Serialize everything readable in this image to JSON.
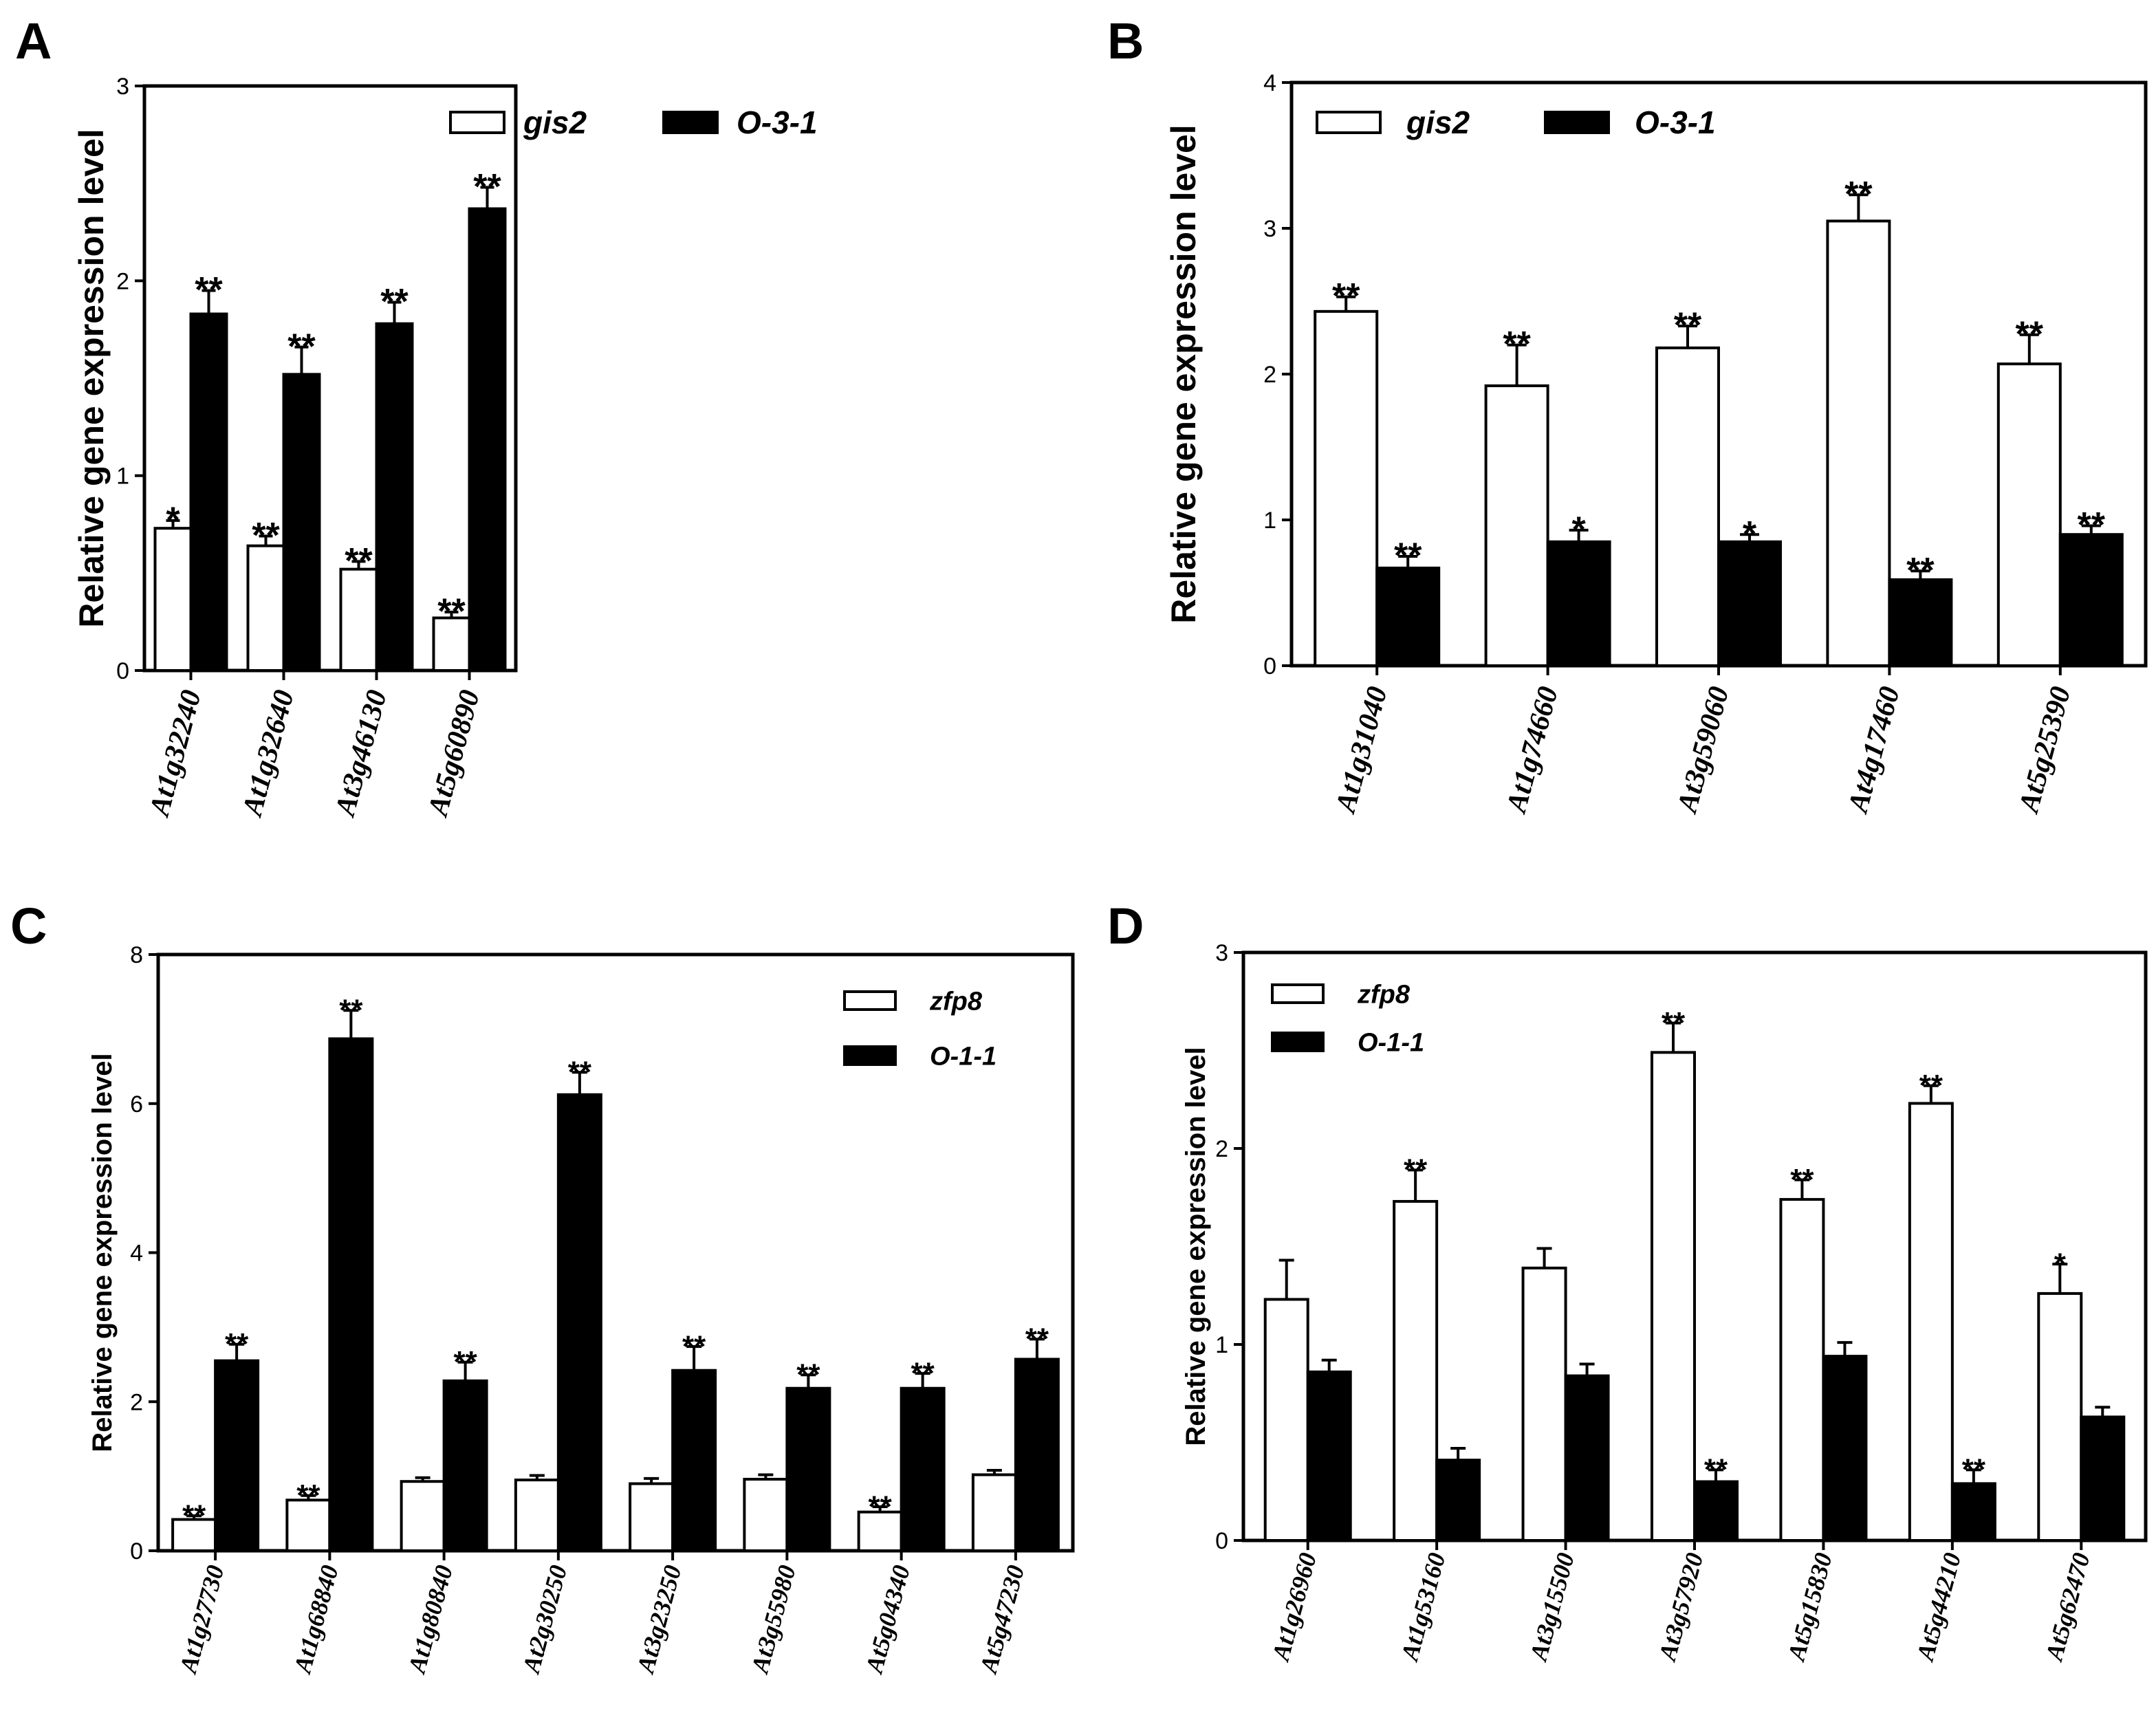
{
  "chart_data": [
    {
      "panel": "A",
      "type": "bar",
      "ylabel": "Relative gene expression level",
      "ylim": [
        0,
        3
      ],
      "yticks": [
        "0",
        "1",
        "2",
        "3"
      ],
      "legend": "top-center",
      "categories": [
        "At1g32240",
        "At1g32640",
        "At3g46130",
        "At5g60890"
      ],
      "series": [
        {
          "name": "gis2",
          "fill": "#ffffff",
          "values": [
            0.73,
            0.64,
            0.52,
            0.27
          ],
          "errors": [
            0.04,
            0.05,
            0.04,
            0.03
          ],
          "sig": [
            "*",
            "**",
            "**",
            "**"
          ]
        },
        {
          "name": "O-3-1",
          "fill": "#000000",
          "values": [
            1.83,
            1.52,
            1.78,
            2.37
          ],
          "errors": [
            0.12,
            0.14,
            0.11,
            0.11
          ],
          "sig": [
            "**",
            "**",
            "**",
            "**"
          ]
        }
      ]
    },
    {
      "panel": "B",
      "type": "bar",
      "ylabel": "Relative gene expression level",
      "ylim": [
        0,
        4
      ],
      "yticks": [
        "0",
        "1",
        "2",
        "3",
        "4"
      ],
      "legend": "top-left",
      "categories": [
        "At1g31040",
        "At1g74660",
        "At3g59060",
        "At4g17460",
        "At5g25390"
      ],
      "series": [
        {
          "name": "gis2",
          "fill": "#ffffff",
          "values": [
            2.43,
            1.92,
            2.18,
            3.05,
            2.07
          ],
          "errors": [
            0.1,
            0.28,
            0.15,
            0.18,
            0.2
          ],
          "sig": [
            "**",
            "**",
            "**",
            "**",
            "**"
          ]
        },
        {
          "name": "O-3-1",
          "fill": "#000000",
          "values": [
            0.67,
            0.85,
            0.85,
            0.59,
            0.9
          ],
          "errors": [
            0.08,
            0.08,
            0.05,
            0.06,
            0.06
          ],
          "sig": [
            "**",
            "*",
            "*",
            "**",
            "**"
          ]
        }
      ]
    },
    {
      "panel": "C",
      "type": "bar",
      "ylabel": "Relative gene expression level",
      "ylim": [
        0,
        8
      ],
      "yticks": [
        "0",
        "2",
        "4",
        "6",
        "8"
      ],
      "legend": "top-right",
      "categories": [
        "At1g27730",
        "At1g68840",
        "At1g80840",
        "At2g30250",
        "At3g23250",
        "At3g55980",
        "At5g04340",
        "At5g47230"
      ],
      "series": [
        {
          "name": "zfp8",
          "fill": "#ffffff",
          "values": [
            0.42,
            0.68,
            0.93,
            0.95,
            0.9,
            0.96,
            0.52,
            1.02
          ],
          "errors": [
            0.05,
            0.06,
            0.05,
            0.06,
            0.07,
            0.06,
            0.07,
            0.06
          ],
          "sig": [
            "**",
            "**",
            "",
            "",
            "",
            "",
            "**",
            ""
          ]
        },
        {
          "name": "O-1-1",
          "fill": "#000000",
          "values": [
            2.55,
            6.87,
            2.28,
            6.12,
            2.42,
            2.18,
            2.18,
            2.57
          ],
          "errors": [
            0.22,
            0.38,
            0.25,
            0.3,
            0.32,
            0.18,
            0.2,
            0.27
          ],
          "sig": [
            "**",
            "**",
            "**",
            "**",
            "**",
            "**",
            "**",
            "**"
          ]
        }
      ]
    },
    {
      "panel": "D",
      "type": "bar",
      "ylabel": "Relative gene expression level",
      "ylim": [
        0,
        3
      ],
      "yticks": [
        "0",
        "1",
        "2",
        "3"
      ],
      "legend": "top-left",
      "categories": [
        "At1g26960",
        "At1g53160",
        "At3g15500",
        "At3g57920",
        "At5g15830",
        "At5g44210",
        "At5g62470"
      ],
      "series": [
        {
          "name": "zfp8",
          "fill": "#ffffff",
          "values": [
            1.23,
            1.73,
            1.39,
            2.49,
            1.74,
            2.23,
            1.26
          ],
          "errors": [
            0.2,
            0.16,
            0.1,
            0.15,
            0.1,
            0.09,
            0.15
          ],
          "sig": [
            "",
            "**",
            "",
            "**",
            "**",
            "**",
            "*"
          ]
        },
        {
          "name": "O-1-1",
          "fill": "#000000",
          "values": [
            0.86,
            0.41,
            0.84,
            0.3,
            0.94,
            0.29,
            0.63
          ],
          "errors": [
            0.06,
            0.06,
            0.06,
            0.06,
            0.07,
            0.07,
            0.05
          ],
          "sig": [
            "",
            "",
            "",
            "**",
            "",
            "**",
            ""
          ]
        }
      ]
    }
  ]
}
